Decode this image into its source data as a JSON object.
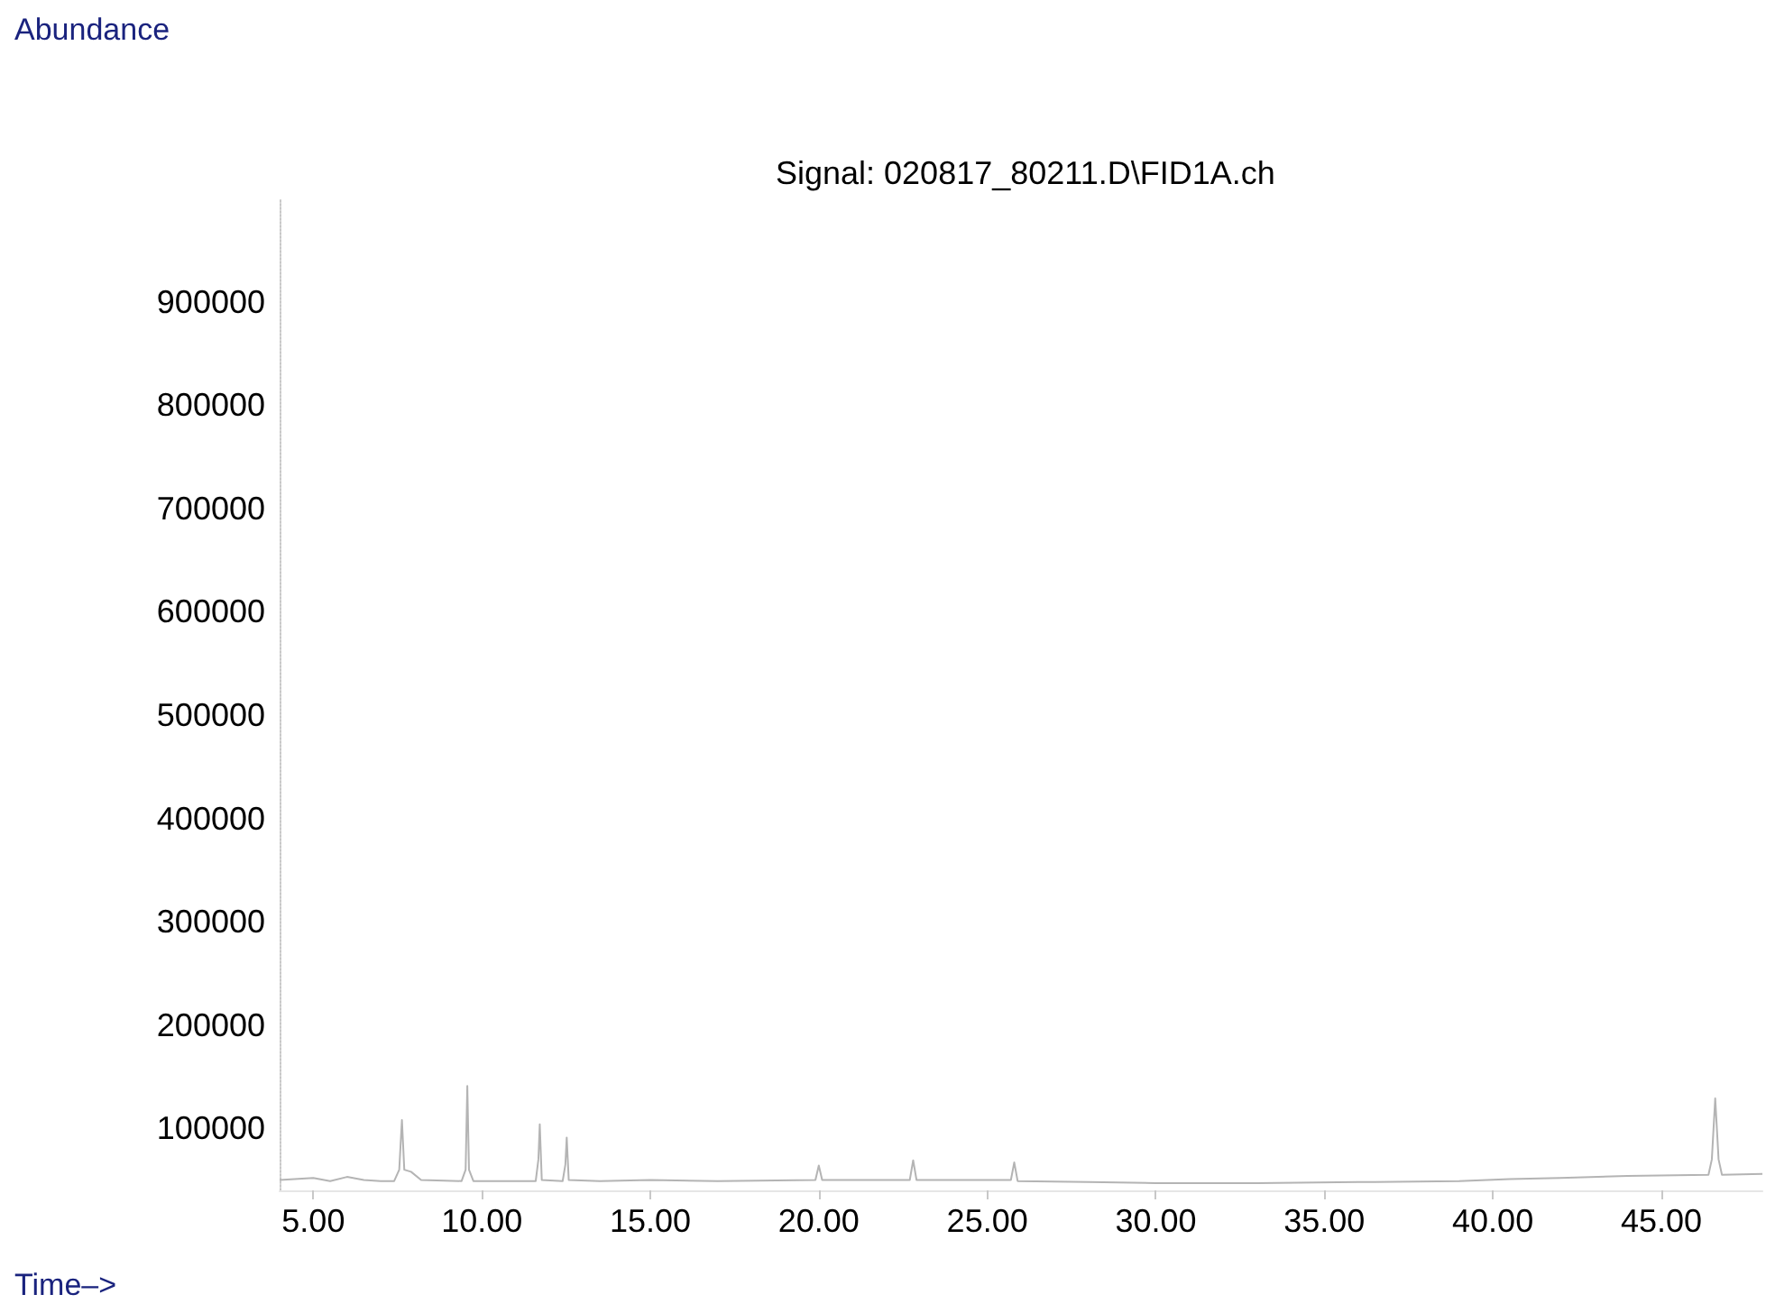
{
  "chart_data": {
    "type": "line",
    "title": "Signal: 020817_80211.D\\FID1A.ch",
    "xlabel": "Time–>",
    "ylabel": "Abundance",
    "x": [
      4.0,
      5.0,
      5.5,
      6.0,
      6.5,
      7.0,
      7.4,
      7.55,
      7.63,
      7.7,
      7.9,
      8.2,
      9.4,
      9.52,
      9.57,
      9.62,
      9.75,
      11.6,
      11.68,
      11.72,
      11.78,
      12.4,
      12.48,
      12.52,
      12.58,
      13.5,
      15,
      17,
      19.9,
      20.0,
      20.1,
      22.7,
      22.8,
      22.9,
      25.7,
      25.8,
      25.9,
      28,
      30,
      33,
      36,
      39,
      40.5,
      42,
      44,
      46.4,
      46.5,
      46.6,
      46.7,
      46.8,
      48
    ],
    "series": [
      {
        "color": "#b4b4b4",
        "values": [
          50000,
          52000,
          49000,
          53000,
          50000,
          49000,
          49000,
          60000,
          108000,
          60000,
          58000,
          50000,
          49000,
          60000,
          141000,
          60000,
          49000,
          49000,
          70000,
          104000,
          50000,
          49000,
          65000,
          91000,
          50000,
          49000,
          50000,
          49000,
          50000,
          64000,
          50000,
          50000,
          69000,
          50000,
          50000,
          67000,
          49000,
          48000,
          47000,
          47000,
          48000,
          49000,
          51000,
          52000,
          54000,
          55000,
          70000,
          129000,
          70000,
          55000,
          56000
        ]
      }
    ],
    "xlim": [
      4,
      48
    ],
    "ylim": [
      40000,
      1000000
    ],
    "xticks": [
      {
        "value": 5,
        "label": "5.00"
      },
      {
        "value": 10,
        "label": "10.00"
      },
      {
        "value": 15,
        "label": "15.00"
      },
      {
        "value": 20,
        "label": "20.00"
      },
      {
        "value": 25,
        "label": "25.00"
      },
      {
        "value": 30,
        "label": "30.00"
      },
      {
        "value": 35,
        "label": "35.00"
      },
      {
        "value": 40,
        "label": "40.00"
      },
      {
        "value": 45,
        "label": "45.00"
      }
    ],
    "yticks": [
      100000,
      200000,
      300000,
      400000,
      500000,
      600000,
      700000,
      800000,
      900000
    ],
    "grid": false,
    "marker": "none",
    "line_style": "solid"
  }
}
